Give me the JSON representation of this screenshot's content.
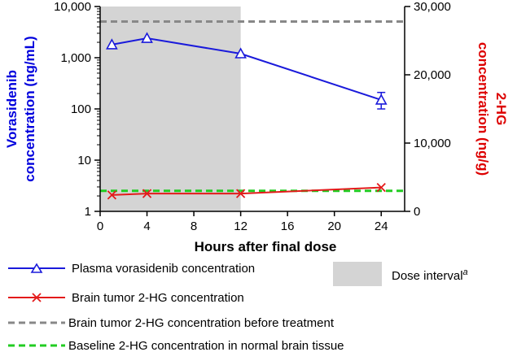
{
  "chart_data": {
    "type": "line",
    "x_axis": {
      "label": "Hours after final dose",
      "range": [
        0,
        26
      ],
      "ticks": [
        0,
        4,
        8,
        12,
        16,
        20,
        24
      ],
      "tick_labels": [
        "0",
        "4",
        "8",
        "12",
        "16",
        "20",
        "24"
      ]
    },
    "y_axis_left": {
      "label_line1": "Vorasidenib",
      "label_line2": "concentration (ng/mL)",
      "scale": "log",
      "range": [
        1,
        10000
      ],
      "ticks": [
        1,
        10,
        100,
        1000,
        10000
      ],
      "tick_labels": [
        "1",
        "10",
        "100",
        "1,000",
        "10,000"
      ],
      "color": "#0000dd"
    },
    "y_axis_right": {
      "label_line1": "2-HG",
      "label_line2": "concentration (ng/g)",
      "scale": "linear",
      "range": [
        0,
        30000
      ],
      "ticks": [
        0,
        10000,
        20000,
        30000
      ],
      "tick_labels": [
        "0",
        "10,000",
        "20,000",
        "30,000"
      ],
      "color": "#dd0000"
    },
    "shaded_region": {
      "x_range": [
        0,
        12
      ],
      "color": "#d4d4d4"
    },
    "series": [
      {
        "name": "Plasma vorasidenib concentration",
        "axis": "left",
        "color": "#1a1adb",
        "marker": "triangle-open",
        "x": [
          1,
          4,
          12,
          24
        ],
        "values": [
          1800,
          2400,
          1200,
          150
        ],
        "error_bars": [
          null,
          null,
          null,
          [
            100,
            210
          ]
        ]
      },
      {
        "name": "Brain tumor 2-HG concentration",
        "axis": "right",
        "color": "#e31a1a",
        "marker": "x",
        "x": [
          1,
          4,
          12,
          24
        ],
        "values": [
          2400,
          2600,
          2600,
          3500
        ]
      },
      {
        "name": "Brain tumor 2-HG concentration before treatment",
        "axis": "right",
        "color": "#888888",
        "style": "dashed",
        "x": [
          0,
          26
        ],
        "values": [
          27800,
          27800
        ]
      },
      {
        "name": "Baseline 2-HG concentration in normal brain tissue",
        "axis": "right",
        "color": "#22cc22",
        "style": "dashed",
        "x": [
          0,
          26
        ],
        "values": [
          3000,
          3000
        ]
      }
    ],
    "legend": {
      "position": "bottom",
      "dose_interval_label": "Dose interval",
      "dose_interval_superscript": "a"
    }
  }
}
